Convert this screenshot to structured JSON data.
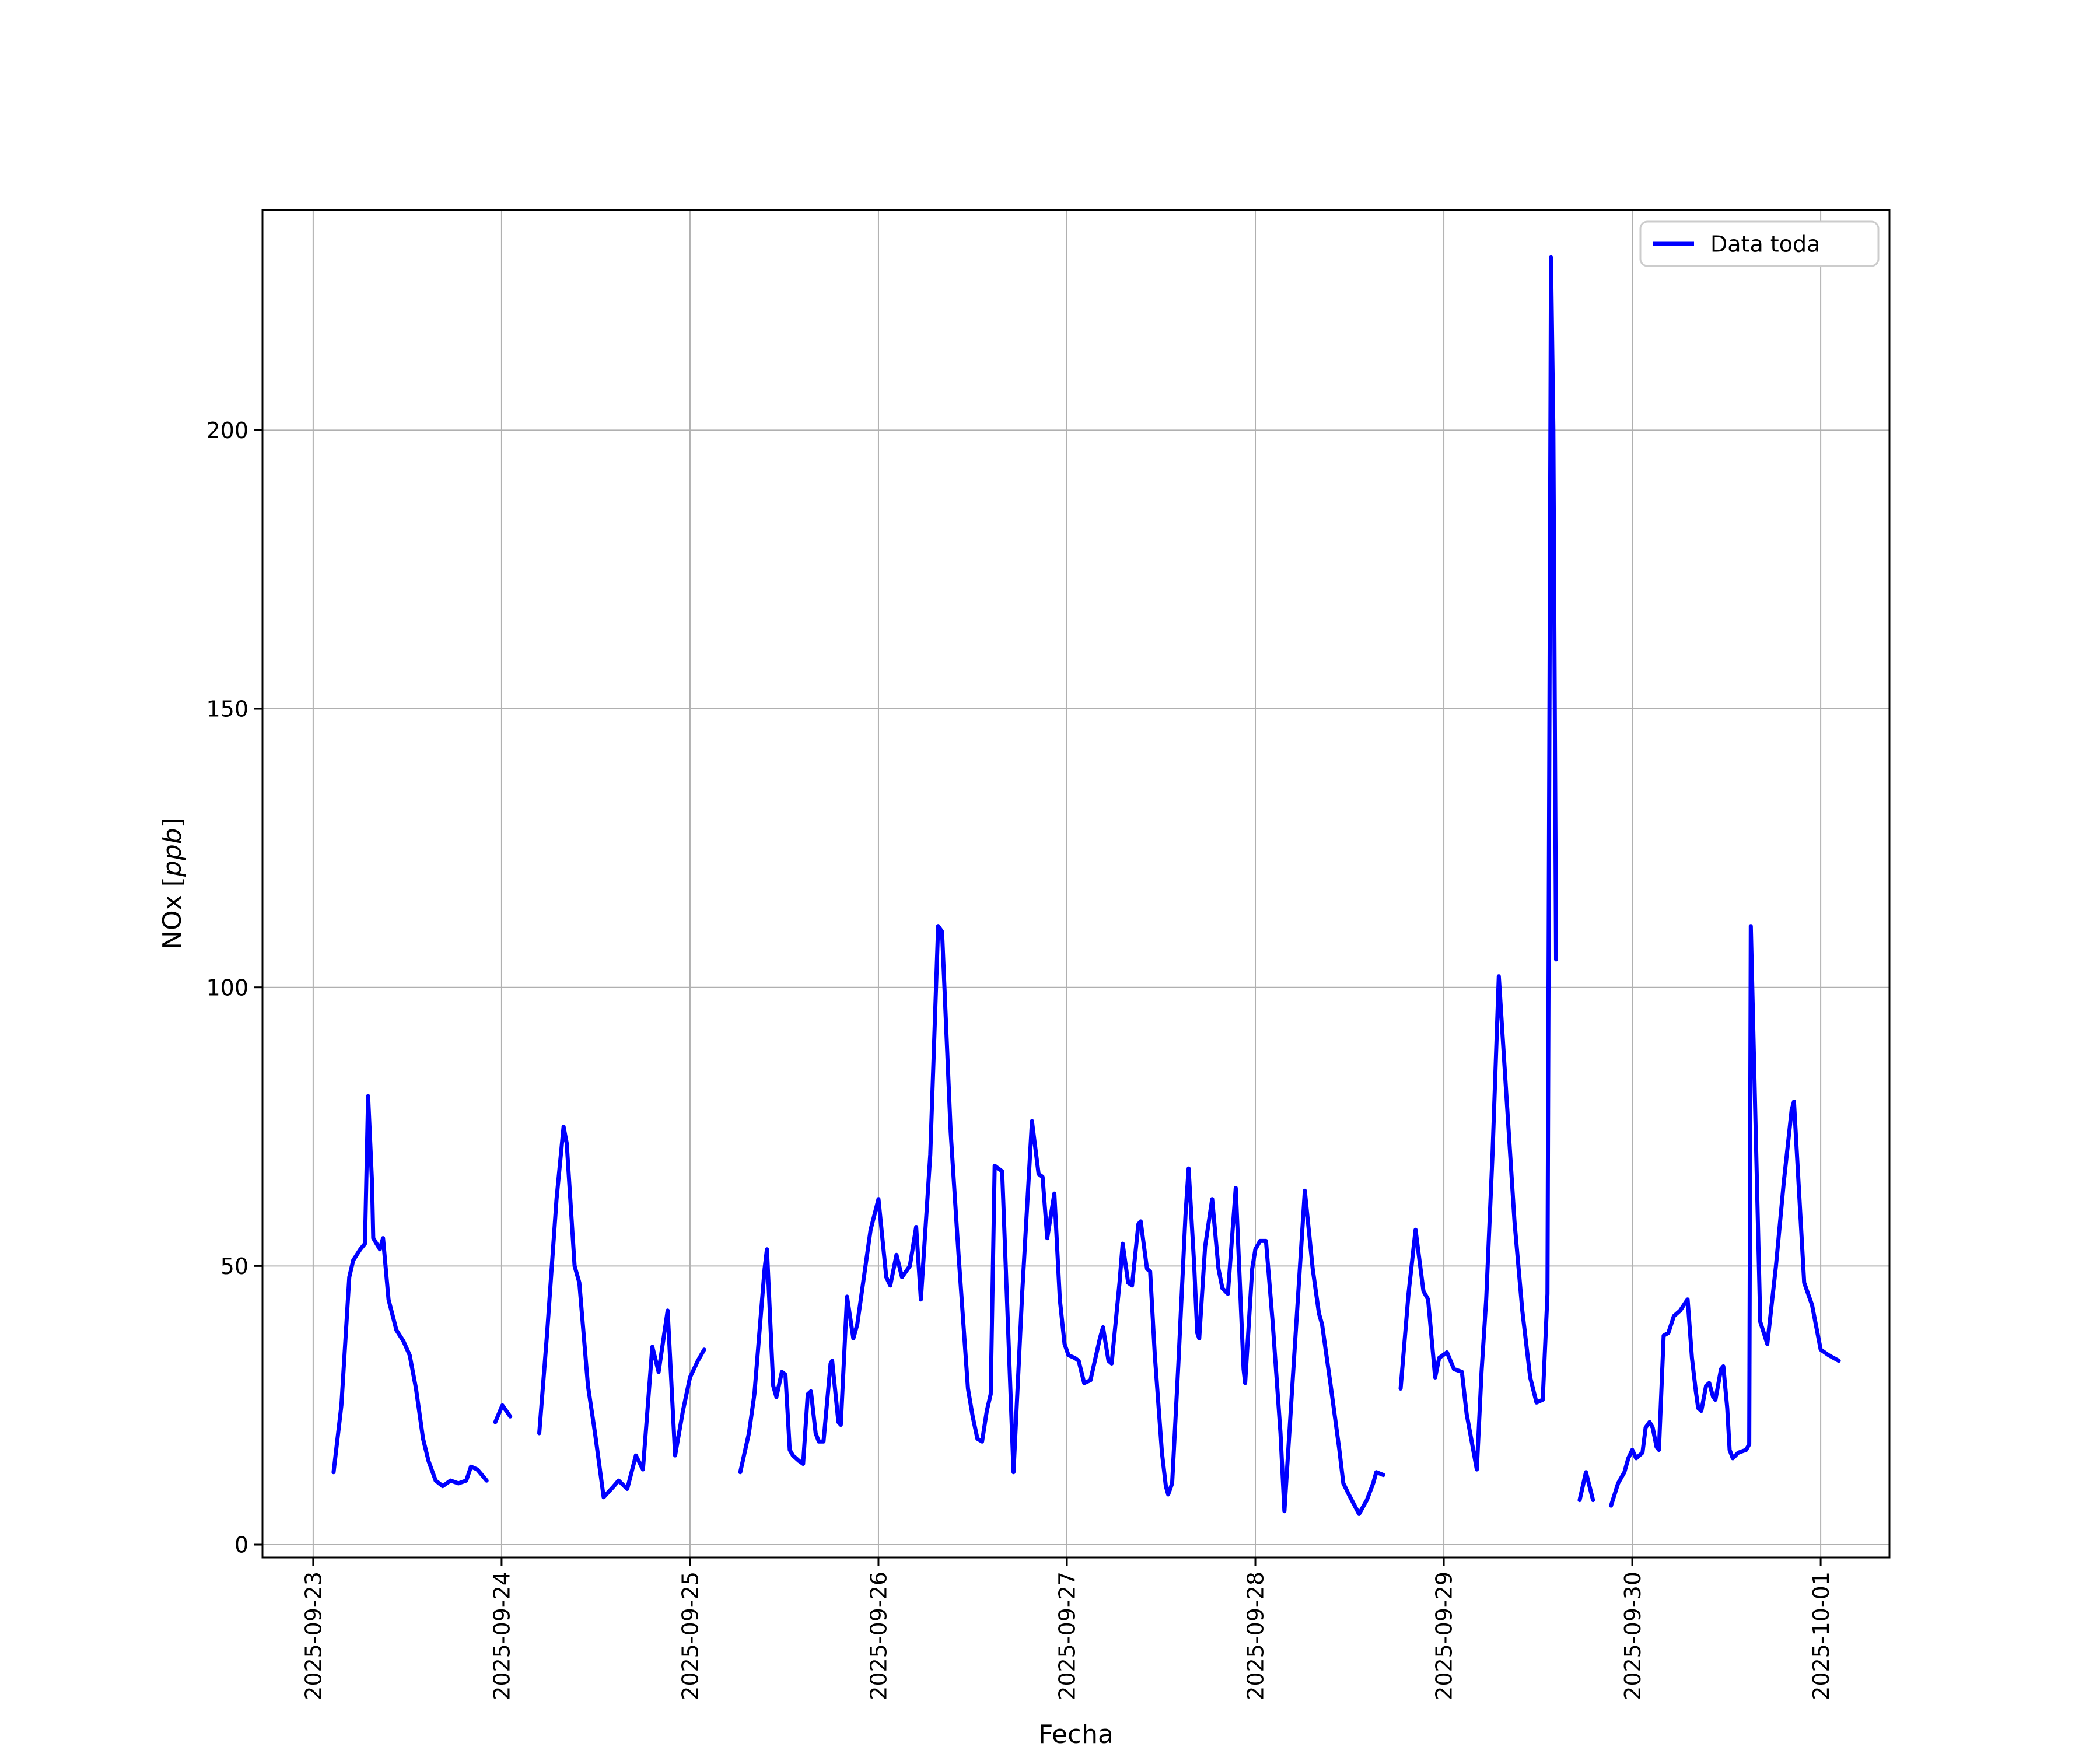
{
  "chart_data": {
    "type": "line",
    "title": "",
    "xlabel": "Fecha",
    "ylabel": "NOx [ppb]",
    "ylabel_parts": {
      "prefix": "NOx [",
      "italic": "ppb",
      "suffix": "]"
    },
    "legend_entries": [
      "Data toda"
    ],
    "legend_position": "upper right",
    "grid": true,
    "x_unit": "hours since 2025-09-23 00:00",
    "x_tick_labels": [
      "2025-09-23",
      "2025-09-24",
      "2025-09-25",
      "2025-09-26",
      "2025-09-27",
      "2025-09-28",
      "2025-09-29",
      "2025-09-30",
      "2025-10-01"
    ],
    "x_tick_days": [
      0,
      1,
      2,
      3,
      4,
      5,
      6,
      7,
      8
    ],
    "y_ticks": [
      0,
      50,
      100,
      150,
      200
    ],
    "y_tick_labels": [
      "0",
      "50",
      "100",
      "150",
      "200"
    ],
    "x_range_days": [
      -0.269,
      8.365
    ],
    "y_range": [
      -2.3,
      239.5
    ],
    "colors": {
      "line": "#0000ff",
      "grid": "#b0b0b0",
      "spine": "#000000",
      "legend_edge": "#cccccc",
      "text": "#000000",
      "background": "#ffffff"
    },
    "series": [
      {
        "name": "Data toda",
        "segments": [
          [
            [
              2.6,
              13
            ],
            [
              3.6,
              25
            ],
            [
              4.6,
              48
            ],
            [
              5.1,
              51
            ],
            [
              6,
              53
            ],
            [
              6.6,
              54
            ],
            [
              7,
              80.5
            ],
            [
              7.5,
              65
            ],
            [
              7.65,
              55
            ],
            [
              8.5,
              53
            ],
            [
              8.9,
              55
            ],
            [
              9.6,
              44
            ],
            [
              10.6,
              38.5
            ],
            [
              11.5,
              36.5
            ],
            [
              12.3,
              34
            ],
            [
              13.1,
              28
            ],
            [
              14,
              19
            ],
            [
              14.7,
              15
            ],
            [
              15.6,
              11.5
            ],
            [
              16.5,
              10.5
            ],
            [
              17.5,
              11.5
            ],
            [
              18.5,
              11
            ],
            [
              19.5,
              11.5
            ],
            [
              20.1,
              14
            ],
            [
              20.9,
              13.5
            ],
            [
              21.5,
              12.5
            ],
            [
              22.1,
              11.5
            ]
          ],
          [
            [
              23.2,
              22
            ],
            [
              24.1,
              25
            ],
            [
              25.1,
              23
            ]
          ],
          [
            [
              28.8,
              20
            ],
            [
              29.8,
              38
            ],
            [
              31,
              62
            ],
            [
              31.9,
              75
            ],
            [
              32.3,
              72
            ],
            [
              33.3,
              50
            ],
            [
              33.9,
              47
            ],
            [
              35,
              28.5
            ],
            [
              35.9,
              20
            ],
            [
              37,
              8.5
            ],
            [
              38.3,
              10.5
            ],
            [
              38.9,
              11.5
            ],
            [
              40,
              10
            ],
            [
              41.1,
              16
            ],
            [
              42,
              13.5
            ],
            [
              43.2,
              35.5
            ],
            [
              44,
              31
            ],
            [
              45.15,
              42
            ],
            [
              46.1,
              16
            ],
            [
              47.1,
              24
            ],
            [
              48,
              30
            ],
            [
              49,
              33
            ],
            [
              49.8,
              35
            ]
          ],
          [
            [
              54.4,
              13
            ],
            [
              55.5,
              20
            ],
            [
              56.2,
              27
            ],
            [
              57.5,
              49.5
            ],
            [
              57.8,
              53
            ],
            [
              58.6,
              28.5
            ],
            [
              59,
              26.5
            ],
            [
              59.7,
              31
            ],
            [
              60.15,
              30.5
            ],
            [
              60.7,
              17
            ],
            [
              61.1,
              16
            ],
            [
              61.9,
              15
            ],
            [
              62.4,
              14.5
            ],
            [
              63,
              27
            ],
            [
              63.4,
              27.5
            ],
            [
              64,
              20
            ],
            [
              64.4,
              18.5
            ],
            [
              65,
              18.5
            ],
            [
              65.9,
              32.5
            ],
            [
              66.1,
              33
            ],
            [
              66.9,
              22
            ],
            [
              67.2,
              21.5
            ],
            [
              68,
              44.5
            ],
            [
              68.8,
              37
            ],
            [
              69.3,
              39.5
            ],
            [
              70.2,
              48.5
            ],
            [
              71,
              56.5
            ],
            [
              72,
              62
            ],
            [
              73,
              48
            ],
            [
              73.5,
              46.5
            ],
            [
              74.3,
              52
            ],
            [
              75,
              48
            ],
            [
              76,
              50
            ],
            [
              76.8,
              57
            ],
            [
              77.4,
              44
            ],
            [
              78.6,
              70
            ],
            [
              79.6,
              111
            ],
            [
              80.1,
              110
            ],
            [
              81.2,
              74
            ],
            [
              82.2,
              52
            ],
            [
              83,
              36
            ],
            [
              83.4,
              28
            ],
            [
              84,
              23
            ],
            [
              84.6,
              19
            ],
            [
              85.2,
              18.5
            ],
            [
              85.8,
              24
            ],
            [
              86.3,
              27
            ],
            [
              86.8,
              68
            ],
            [
              87.75,
              67
            ],
            [
              89.2,
              13
            ],
            [
              90.3,
              45
            ],
            [
              91.55,
              76
            ],
            [
              92.4,
              66.5
            ],
            [
              92.9,
              66
            ],
            [
              93.5,
              55
            ],
            [
              94.4,
              63
            ],
            [
              95.1,
              44
            ],
            [
              95.7,
              36
            ],
            [
              96.2,
              34
            ],
            [
              97,
              33.5
            ],
            [
              97.5,
              33
            ],
            [
              98.2,
              29
            ],
            [
              99,
              29.5
            ],
            [
              100.2,
              37
            ],
            [
              100.6,
              39
            ],
            [
              101.3,
              33
            ],
            [
              101.7,
              32.5
            ],
            [
              102.7,
              47
            ],
            [
              103.1,
              54
            ],
            [
              103.8,
              47
            ],
            [
              104.3,
              46.5
            ],
            [
              105.1,
              57.5
            ],
            [
              105.4,
              58
            ],
            [
              106.2,
              49.5
            ],
            [
              106.6,
              49
            ],
            [
              107.2,
              34
            ],
            [
              108.1,
              16.5
            ],
            [
              108.6,
              10.5
            ],
            [
              108.9,
              9
            ],
            [
              109.4,
              11
            ],
            [
              110.2,
              32.5
            ],
            [
              111.1,
              59
            ],
            [
              111.5,
              67.5
            ],
            [
              112.2,
              50.5
            ],
            [
              112.6,
              38
            ],
            [
              112.85,
              37
            ],
            [
              113.6,
              53.5
            ],
            [
              114.5,
              62
            ],
            [
              115.3,
              49.5
            ],
            [
              115.8,
              46
            ],
            [
              116.5,
              45
            ],
            [
              117.5,
              64
            ],
            [
              118.5,
              31.5
            ],
            [
              118.7,
              29
            ],
            [
              119.6,
              49.5
            ],
            [
              120,
              53
            ],
            [
              120.6,
              54.5
            ],
            [
              121.35,
              54.5
            ],
            [
              122.2,
              40
            ],
            [
              123.2,
              20
            ],
            [
              123.7,
              6
            ],
            [
              125,
              35
            ],
            [
              126.3,
              63.5
            ],
            [
              127.3,
              49.5
            ],
            [
              128.1,
              41.5
            ],
            [
              128.5,
              39.5
            ],
            [
              129.6,
              28.5
            ],
            [
              130.7,
              17
            ],
            [
              131.2,
              11
            ],
            [
              131.9,
              9
            ],
            [
              133.2,
              5.5
            ],
            [
              134.2,
              8
            ],
            [
              135,
              11
            ],
            [
              135.4,
              13
            ],
            [
              136.3,
              12.5
            ]
          ],
          [
            [
              138.5,
              28
            ],
            [
              139.5,
              45
            ],
            [
              140.4,
              56.5
            ],
            [
              141.4,
              45.5
            ],
            [
              142,
              44
            ],
            [
              142.9,
              30
            ],
            [
              143.4,
              33.5
            ],
            [
              144.4,
              34.5
            ],
            [
              145.3,
              31.5
            ],
            [
              146.3,
              31
            ],
            [
              146.9,
              23.5
            ],
            [
              148.2,
              13.5
            ],
            [
              148.8,
              31
            ],
            [
              149.4,
              44
            ],
            [
              150.2,
              70
            ],
            [
              151,
              102
            ],
            [
              152,
              80
            ],
            [
              153,
              58
            ],
            [
              154,
              42
            ],
            [
              155,
              30
            ],
            [
              155.8,
              25.5
            ],
            [
              156.6,
              26
            ],
            [
              157.2,
              45
            ],
            [
              157.65,
              231
            ],
            [
              157.95,
              200
            ],
            [
              158.3,
              105
            ]
          ],
          [
            [
              161.3,
              8
            ],
            [
              162.1,
              13
            ],
            [
              163,
              8
            ]
          ],
          [
            [
              165.3,
              7
            ],
            [
              166.2,
              11
            ],
            [
              167,
              13
            ],
            [
              167.5,
              15.5
            ],
            [
              168,
              17
            ],
            [
              168.5,
              15.5
            ],
            [
              169.3,
              16.5
            ],
            [
              169.7,
              21
            ],
            [
              170.2,
              22
            ],
            [
              170.6,
              21
            ],
            [
              171.1,
              17.5
            ],
            [
              171.4,
              17
            ],
            [
              172,
              37.5
            ],
            [
              172.6,
              38
            ],
            [
              173.3,
              41
            ],
            [
              174.1,
              42
            ],
            [
              174.8,
              43.5
            ],
            [
              175.05,
              44
            ],
            [
              175.6,
              33.5
            ],
            [
              176.1,
              27.5
            ],
            [
              176.4,
              24.5
            ],
            [
              176.8,
              24
            ],
            [
              177.4,
              28.5
            ],
            [
              177.8,
              29
            ],
            [
              178.3,
              26.5
            ],
            [
              178.6,
              26
            ],
            [
              179.3,
              31.5
            ],
            [
              179.6,
              32
            ],
            [
              180.1,
              24.5
            ],
            [
              180.4,
              17
            ],
            [
              180.8,
              15.5
            ],
            [
              181.5,
              16.5
            ],
            [
              182.5,
              17
            ],
            [
              182.9,
              18
            ],
            [
              183.1,
              111
            ],
            [
              184.3,
              40
            ],
            [
              185.2,
              36
            ],
            [
              186.3,
              50
            ],
            [
              187.3,
              65
            ],
            [
              188.3,
              78
            ],
            [
              188.6,
              79.5
            ],
            [
              189.9,
              47
            ],
            [
              190.9,
              43
            ],
            [
              192,
              35
            ],
            [
              193,
              34
            ],
            [
              194.3,
              33
            ]
          ]
        ]
      }
    ]
  }
}
